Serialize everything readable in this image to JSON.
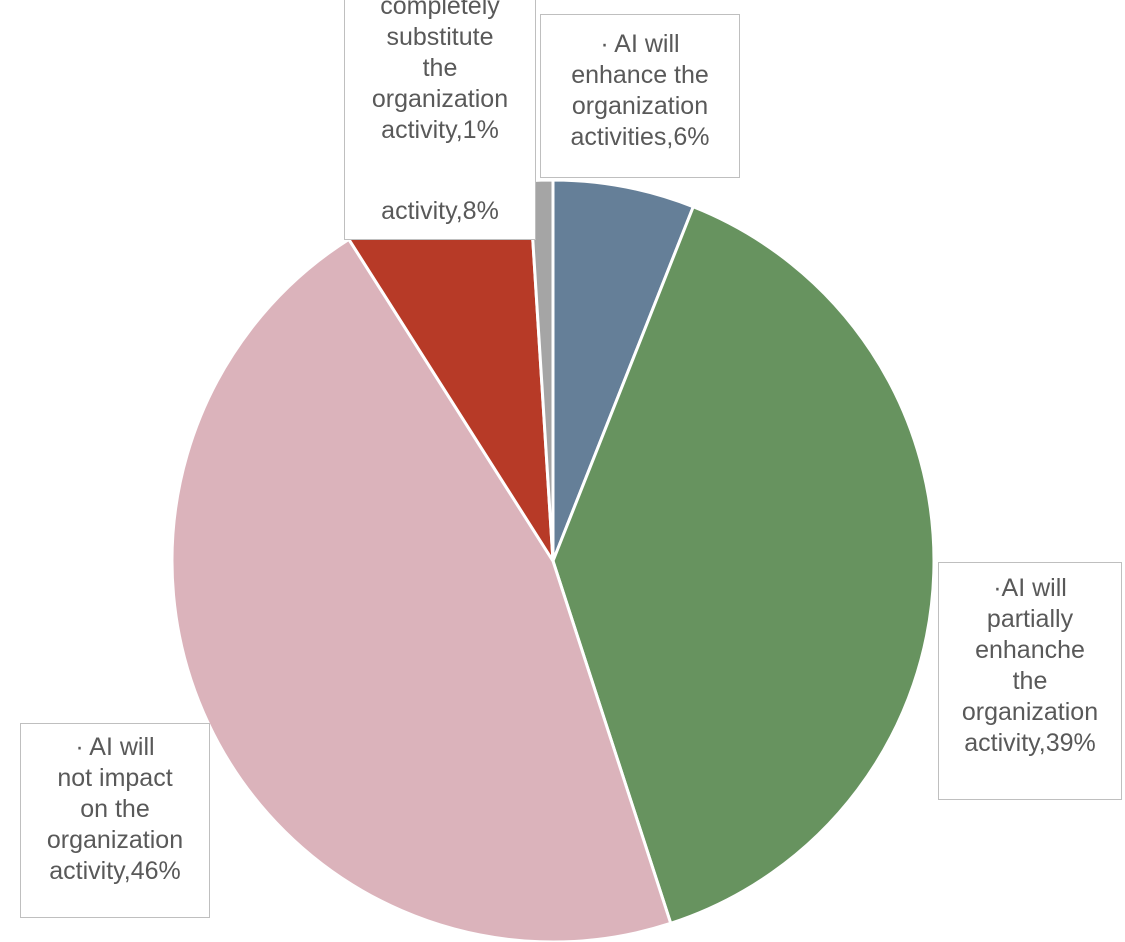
{
  "chart_data": {
    "type": "pie",
    "title": "",
    "start_angle_deg": 0,
    "direction": "clockwise",
    "slices": [
      {
        "key": "a",
        "category": "·    AI will\nenhance the\norganization\nactivities",
        "percent_label": "6%",
        "value": 6,
        "color": "#657f98"
      },
      {
        "key": "b",
        "category": "·AI will\npartially\nenhanche\nthe\norganization\nactivity",
        "percent_label": "39%",
        "value": 39,
        "color": "#67935f"
      },
      {
        "key": "c",
        "category": "·     AI  will\nnot impact\non the\norganization\nactivity",
        "percent_label": "46%",
        "value": 46,
        "color": "#dbb3bb"
      },
      {
        "key": "d",
        "category": "activity",
        "percent_label": "8%",
        "value": 8,
        "color": "#b73a27"
      },
      {
        "key": "e",
        "category": "completely\nsubstitute\nthe\norganization\nactivity",
        "percent_label": "1%",
        "value": 1,
        "color": "#a5a5a5"
      }
    ],
    "legend": "none"
  }
}
